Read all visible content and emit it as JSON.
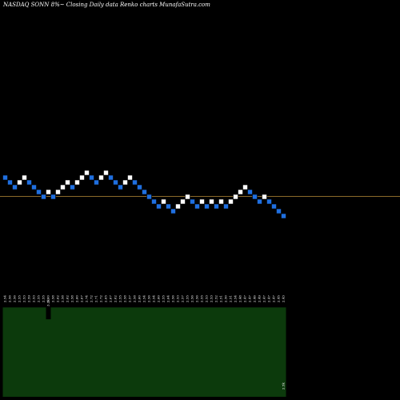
{
  "chart_data": {
    "type": "renko",
    "title": "NASDAQ SONN  8%~  Closing Daily data  Renko  charts MunafaSutra.com",
    "colors": {
      "background": "#000000",
      "up_brick": "#ffffff",
      "down_brick": "#1f6fe0",
      "reference_line": "#8a6a2a",
      "volume_bars": "#0c3a0c",
      "tick_text": "#ffffff"
    },
    "bricks": [
      {
        "row": 0,
        "dir": "down"
      },
      {
        "row": 1,
        "dir": "down"
      },
      {
        "row": 2,
        "dir": "down"
      },
      {
        "row": 1,
        "dir": "up"
      },
      {
        "row": 0,
        "dir": "up"
      },
      {
        "row": 1,
        "dir": "down"
      },
      {
        "row": 2,
        "dir": "down"
      },
      {
        "row": 3,
        "dir": "down"
      },
      {
        "row": 4,
        "dir": "down"
      },
      {
        "row": 3,
        "dir": "up"
      },
      {
        "row": 4,
        "dir": "down"
      },
      {
        "row": 3,
        "dir": "up"
      },
      {
        "row": 2,
        "dir": "up"
      },
      {
        "row": 1,
        "dir": "up"
      },
      {
        "row": 2,
        "dir": "down"
      },
      {
        "row": 1,
        "dir": "up"
      },
      {
        "row": 0,
        "dir": "up"
      },
      {
        "row": -1,
        "dir": "up"
      },
      {
        "row": 0,
        "dir": "down"
      },
      {
        "row": 1,
        "dir": "down"
      },
      {
        "row": 0,
        "dir": "up"
      },
      {
        "row": -1,
        "dir": "up"
      },
      {
        "row": 0,
        "dir": "down"
      },
      {
        "row": 1,
        "dir": "down"
      },
      {
        "row": 2,
        "dir": "down"
      },
      {
        "row": 1,
        "dir": "up"
      },
      {
        "row": 0,
        "dir": "up"
      },
      {
        "row": 1,
        "dir": "down"
      },
      {
        "row": 2,
        "dir": "down"
      },
      {
        "row": 3,
        "dir": "down"
      },
      {
        "row": 4,
        "dir": "down"
      },
      {
        "row": 5,
        "dir": "down"
      },
      {
        "row": 6,
        "dir": "down"
      },
      {
        "row": 5,
        "dir": "up"
      },
      {
        "row": 6,
        "dir": "down"
      },
      {
        "row": 7,
        "dir": "down"
      },
      {
        "row": 6,
        "dir": "up"
      },
      {
        "row": 5,
        "dir": "up"
      },
      {
        "row": 4,
        "dir": "up"
      },
      {
        "row": 5,
        "dir": "down"
      },
      {
        "row": 6,
        "dir": "down"
      },
      {
        "row": 5,
        "dir": "up"
      },
      {
        "row": 6,
        "dir": "down"
      },
      {
        "row": 5,
        "dir": "up"
      },
      {
        "row": 6,
        "dir": "down"
      },
      {
        "row": 5,
        "dir": "up"
      },
      {
        "row": 6,
        "dir": "down"
      },
      {
        "row": 5,
        "dir": "up"
      },
      {
        "row": 4,
        "dir": "up"
      },
      {
        "row": 3,
        "dir": "up"
      },
      {
        "row": 2,
        "dir": "up"
      },
      {
        "row": 3,
        "dir": "down"
      },
      {
        "row": 4,
        "dir": "down"
      },
      {
        "row": 5,
        "dir": "down"
      },
      {
        "row": 4,
        "dir": "up"
      },
      {
        "row": 5,
        "dir": "down"
      },
      {
        "row": 6,
        "dir": "down"
      },
      {
        "row": 7,
        "dir": "down"
      },
      {
        "row": 8,
        "dir": "down"
      }
    ],
    "reference_row": 4,
    "tick_labels": [
      "2.54",
      "2.56",
      "2.56",
      "2.55",
      "2.53",
      "2.59",
      "2.53",
      "2.55",
      "2.55",
      "2.60",
      "2.58",
      "2.62",
      "2.58",
      "2.62",
      "2.58",
      "2.60",
      "2.67",
      "2.74",
      "2.72",
      "2.71",
      "2.72",
      "2.65",
      "2.67",
      "2.62",
      "2.55",
      "2.58",
      "2.57",
      "2.58",
      "2.60",
      "2.54",
      "2.56",
      "2.54",
      "2.60",
      "2.55",
      "2.64",
      "2.56",
      "2.53",
      "2.57",
      "2.55",
      "2.56",
      "2.56",
      "2.55",
      "2.53",
      "2.53",
      "2.52",
      "2.51",
      "2.50",
      "2.51",
      "2.54",
      "2.48",
      "2.47",
      "2.47",
      "2.46",
      "2.49",
      "2.47",
      "2.47",
      "2.47",
      "2.45",
      "2.43"
    ],
    "volume": [
      98,
      98,
      98,
      98,
      98,
      98,
      98,
      98,
      98,
      85,
      98,
      98,
      98,
      98,
      98,
      98,
      98,
      98,
      98,
      98,
      98,
      98,
      98,
      98,
      98,
      98,
      98,
      98,
      98,
      98,
      98,
      98,
      98,
      98,
      98,
      98,
      98,
      98,
      98,
      98,
      98,
      98,
      98,
      98,
      98,
      98,
      98,
      98,
      98,
      98,
      98,
      98,
      98,
      98,
      98,
      98,
      98,
      98,
      98
    ],
    "volume_labels": [
      {
        "index": 9,
        "text": "3.2k"
      },
      {
        "index": 58,
        "text": "2.5k"
      }
    ]
  }
}
